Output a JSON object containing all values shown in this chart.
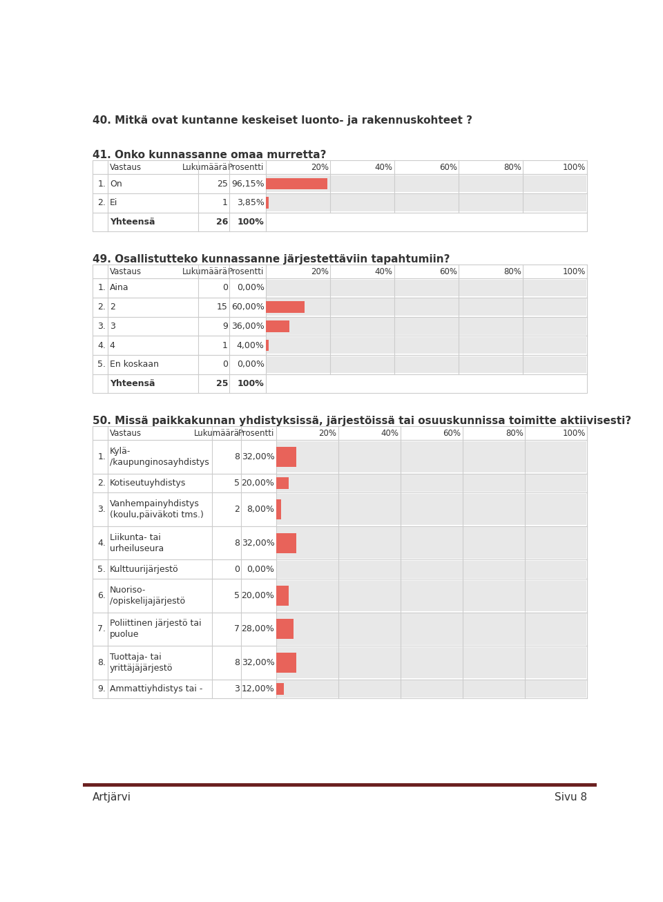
{
  "bg_color": "#ffffff",
  "text_color": "#333333",
  "bar_red": "#e8635a",
  "bar_gray": "#e8e8e8",
  "border_color": "#cccccc",
  "footer_bar_color": "#6b2020",
  "footer_text": "Artjärvi",
  "footer_page": "Sivu 8",
  "q40_title": "40. Mitkä ovat kuntanne keskeiset luonto- ja rakennuskohteet ?",
  "q41_title": "41. Onko kunnassanne omaa murretta?",
  "q41_rows": [
    {
      "num": "1.",
      "label": "On",
      "count": "25",
      "pct": "96,15%",
      "value": 96.15
    },
    {
      "num": "2.",
      "label": "Ei",
      "count": "1",
      "pct": "3,85%",
      "value": 3.85
    }
  ],
  "q41_total_count": "26",
  "q41_total_pct": "100%",
  "q49_title": "49. Osallistutteko kunnassanne järjestettäviin tapahtumiin?",
  "q49_rows": [
    {
      "num": "1.",
      "label": "Aina",
      "count": "0",
      "pct": "0,00%",
      "value": 0.0
    },
    {
      "num": "2.",
      "label": "2",
      "count": "15",
      "pct": "60,00%",
      "value": 60.0
    },
    {
      "num": "3.",
      "label": "3",
      "count": "9",
      "pct": "36,00%",
      "value": 36.0
    },
    {
      "num": "4.",
      "label": "4",
      "count": "1",
      "pct": "4,00%",
      "value": 4.0
    },
    {
      "num": "5.",
      "label": "En koskaan",
      "count": "0",
      "pct": "0,00%",
      "value": 0.0
    }
  ],
  "q49_total_count": "25",
  "q49_total_pct": "100%",
  "q50_title": "50. Missä paikkakunnan yhdistyksissä, järjestöissä tai osuuskunnissa toimitte aktiivisesti?",
  "q50_rows": [
    {
      "num": "1.",
      "label": "Kylä-\n/kaupunginosayhdistys",
      "count": "8",
      "pct": "32,00%",
      "value": 32.0
    },
    {
      "num": "2.",
      "label": "Kotiseutuyhdistys",
      "count": "5",
      "pct": "20,00%",
      "value": 20.0
    },
    {
      "num": "3.",
      "label": "Vanhempainyhdistys\n(koulu,päiväkoti tms.)",
      "count": "2",
      "pct": "8,00%",
      "value": 8.0
    },
    {
      "num": "4.",
      "label": "Liikunta- tai\nurheiluseura",
      "count": "8",
      "pct": "32,00%",
      "value": 32.0
    },
    {
      "num": "5.",
      "label": "Kulttuurijärjestö",
      "count": "0",
      "pct": "0,00%",
      "value": 0.0
    },
    {
      "num": "6.",
      "label": "Nuoriso-\n/opiskelijajärjestö",
      "count": "5",
      "pct": "20,00%",
      "value": 20.0
    },
    {
      "num": "7.",
      "label": "Poliittinen järjestö tai\npuolue",
      "count": "7",
      "pct": "28,00%",
      "value": 28.0
    },
    {
      "num": "8.",
      "label": "Tuottaja- tai\nyrittäjäjärjestö",
      "count": "8",
      "pct": "32,00%",
      "value": 32.0
    },
    {
      "num": "9.",
      "label": "Ammattiyhdistys tai -",
      "count": "3",
      "pct": "12,00%",
      "value": 12.0
    }
  ]
}
